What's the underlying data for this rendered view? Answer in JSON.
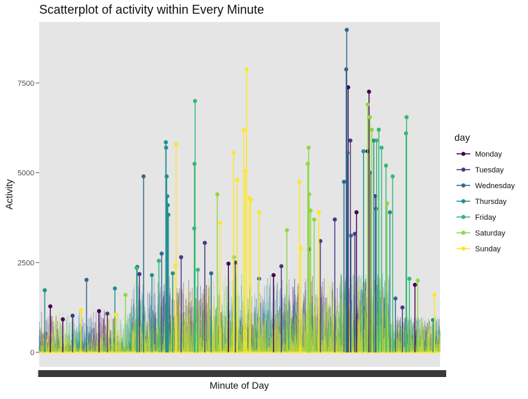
{
  "chart_data": {
    "type": "scatter",
    "title": "Scatterplot of activity within Every Minute",
    "xlabel": "Minute of Day",
    "ylabel": "Activity",
    "ylim": [
      -400,
      9200
    ],
    "xlim": [
      0,
      1440
    ],
    "y_ticks": [
      "0",
      "2500",
      "5000",
      "7500"
    ],
    "y_tick_values": [
      0,
      2500,
      5000,
      7500
    ],
    "x_tick_labels": "overlapping minute labels (00:00–23:59)",
    "grid": false,
    "legend_position": "right",
    "legend_title": "day",
    "colors": {
      "panel_background": "#e5e5e5",
      "axis_text": "#4d4d4d"
    },
    "series": [
      {
        "name": "Monday",
        "color": "#440154",
        "points": [
          [
            40,
            1280
          ],
          [
            85,
            920
          ],
          [
            215,
            1150
          ],
          [
            680,
            2470
          ],
          [
            842,
            2150
          ],
          [
            970,
            2870
          ],
          [
            1110,
            7380
          ],
          [
            1185,
            7260
          ],
          [
            1180,
            5600
          ],
          [
            1140,
            3900
          ],
          [
            1350,
            1880
          ]
        ]
      },
      {
        "name": "Tuesday",
        "color": "#443a83",
        "points": [
          [
            120,
            1020
          ],
          [
            245,
            1080
          ],
          [
            360,
            2180
          ],
          [
            510,
            2650
          ],
          [
            595,
            3050
          ],
          [
            705,
            2500
          ],
          [
            870,
            2400
          ],
          [
            1010,
            3100
          ],
          [
            1062,
            3700
          ],
          [
            1118,
            5900
          ],
          [
            1134,
            3300
          ],
          [
            1190,
            5000
          ],
          [
            1208,
            4350
          ],
          [
            1305,
            1250
          ]
        ]
      },
      {
        "name": "Wednesday",
        "color": "#31688e",
        "points": [
          [
            170,
            2020
          ],
          [
            375,
            4900
          ],
          [
            352,
            2380
          ],
          [
            440,
            2750
          ],
          [
            618,
            2200
          ],
          [
            790,
            2050
          ],
          [
            1095,
            4750
          ],
          [
            1105,
            8980
          ],
          [
            1103,
            7880
          ],
          [
            1108,
            5550
          ],
          [
            1120,
            3250
          ],
          [
            1210,
            4000
          ],
          [
            1280,
            1500
          ]
        ]
      },
      {
        "name": "Thursday",
        "color": "#21908d",
        "points": [
          [
            20,
            1730
          ],
          [
            272,
            1780
          ],
          [
            405,
            2150
          ],
          [
            455,
            5850
          ],
          [
            456,
            5700
          ],
          [
            458,
            4900
          ],
          [
            460,
            4350
          ],
          [
            462,
            4100
          ],
          [
            464,
            3830
          ],
          [
            480,
            2200
          ],
          [
            1165,
            5600
          ],
          [
            1202,
            5900
          ],
          [
            1260,
            3900
          ],
          [
            1415,
            900
          ]
        ]
      },
      {
        "name": "Friday",
        "color": "#35b779",
        "points": [
          [
            350,
            2350
          ],
          [
            430,
            2550
          ],
          [
            560,
            7000
          ],
          [
            558,
            5250
          ],
          [
            557,
            3450
          ],
          [
            570,
            2300
          ],
          [
            1220,
            6200
          ],
          [
            1230,
            5700
          ],
          [
            1212,
            5900
          ],
          [
            1246,
            5200
          ],
          [
            1270,
            4900
          ],
          [
            1320,
            6550
          ],
          [
            1318,
            6100
          ],
          [
            1330,
            2050
          ]
        ]
      },
      {
        "name": "Saturday",
        "color": "#8fd744",
        "points": [
          [
            310,
            1600
          ],
          [
            640,
            4400
          ],
          [
            700,
            2650
          ],
          [
            890,
            3400
          ],
          [
            968,
            5700
          ],
          [
            965,
            5250
          ],
          [
            970,
            4400
          ],
          [
            975,
            3950
          ],
          [
            988,
            3700
          ],
          [
            1180,
            6900
          ],
          [
            1188,
            6550
          ],
          [
            1195,
            6200
          ],
          [
            1250,
            4150
          ],
          [
            1360,
            2000
          ]
        ]
      },
      {
        "name": "Sunday",
        "color": "#fde725",
        "points": [
          [
            150,
            1180
          ],
          [
            275,
            1050
          ],
          [
            492,
            5800
          ],
          [
            490,
            2420
          ],
          [
            650,
            3600
          ],
          [
            745,
            7880
          ],
          [
            698,
            5550
          ],
          [
            735,
            6200
          ],
          [
            740,
            5050
          ],
          [
            712,
            4800
          ],
          [
            755,
            4300
          ],
          [
            760,
            4250
          ],
          [
            790,
            3900
          ],
          [
            935,
            4750
          ],
          [
            940,
            2900
          ],
          [
            1005,
            3900
          ],
          [
            1420,
            1600
          ]
        ]
      }
    ],
    "dense_baseline": "hundreds of overlapping points for every minute between 0 and roughly 2500"
  }
}
